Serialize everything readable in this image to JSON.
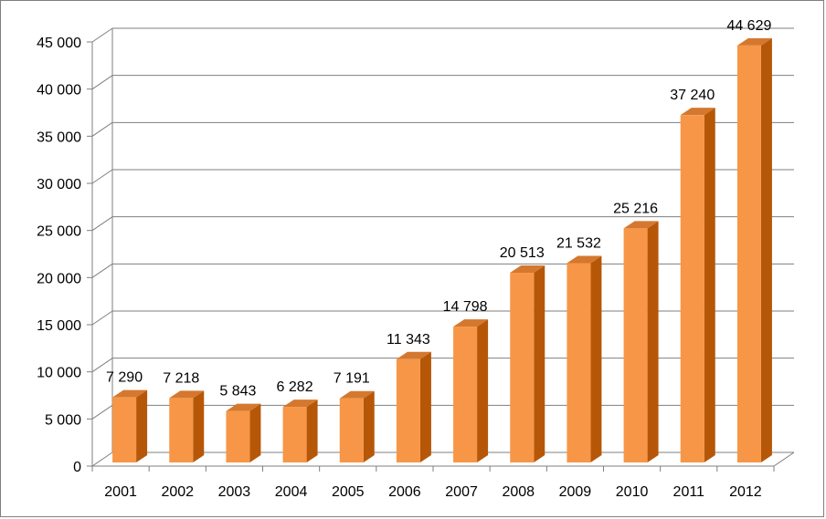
{
  "chart_data": {
    "type": "bar",
    "categories": [
      "2001",
      "2002",
      "2003",
      "2004",
      "2005",
      "2006",
      "2007",
      "2008",
      "2009",
      "2010",
      "2011",
      "2012"
    ],
    "values": [
      7290,
      7218,
      5843,
      6282,
      7191,
      11343,
      14798,
      20513,
      21532,
      25216,
      37240,
      44629
    ],
    "value_labels": [
      "7 290",
      "7 218",
      "5 843",
      "6 282",
      "7 191",
      "11 343",
      "14 798",
      "20 513",
      "21 532",
      "25 216",
      "37 240",
      "44 629"
    ],
    "y_ticks": [
      0,
      5000,
      10000,
      15000,
      20000,
      25000,
      30000,
      35000,
      40000,
      45000
    ],
    "y_tick_labels": [
      "0",
      "5 000",
      "10 000",
      "15 000",
      "20 000",
      "25 000",
      "30 000",
      "35 000",
      "40 000",
      "45 000"
    ],
    "ylim": [
      0,
      45000
    ],
    "grid": true,
    "legend": "none",
    "colors": {
      "bar_front": "#f79646",
      "bar_side": "#b65708",
      "bar_top": "#d4782f",
      "grid": "#7f7f7f"
    }
  }
}
